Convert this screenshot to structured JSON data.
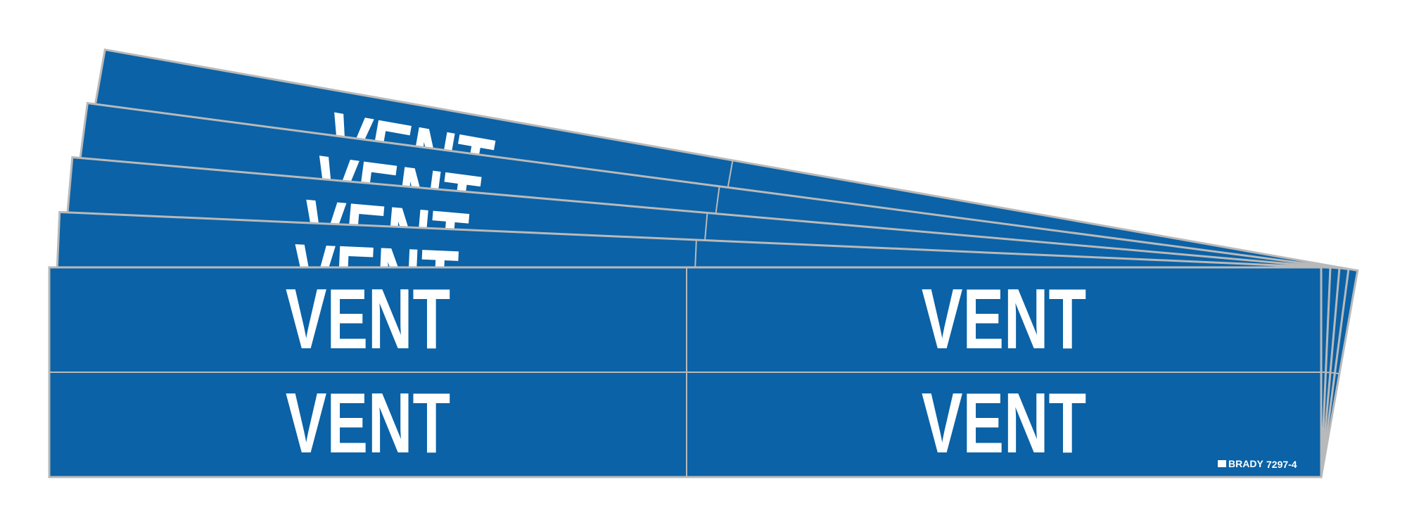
{
  "marker": {
    "legend": "VENT",
    "brand": "BRADY",
    "part_number": "7297-4",
    "card_count": 5,
    "colors": {
      "background": "#0b62a6",
      "text": "#ffffff",
      "border": "#b9b9b9"
    }
  }
}
